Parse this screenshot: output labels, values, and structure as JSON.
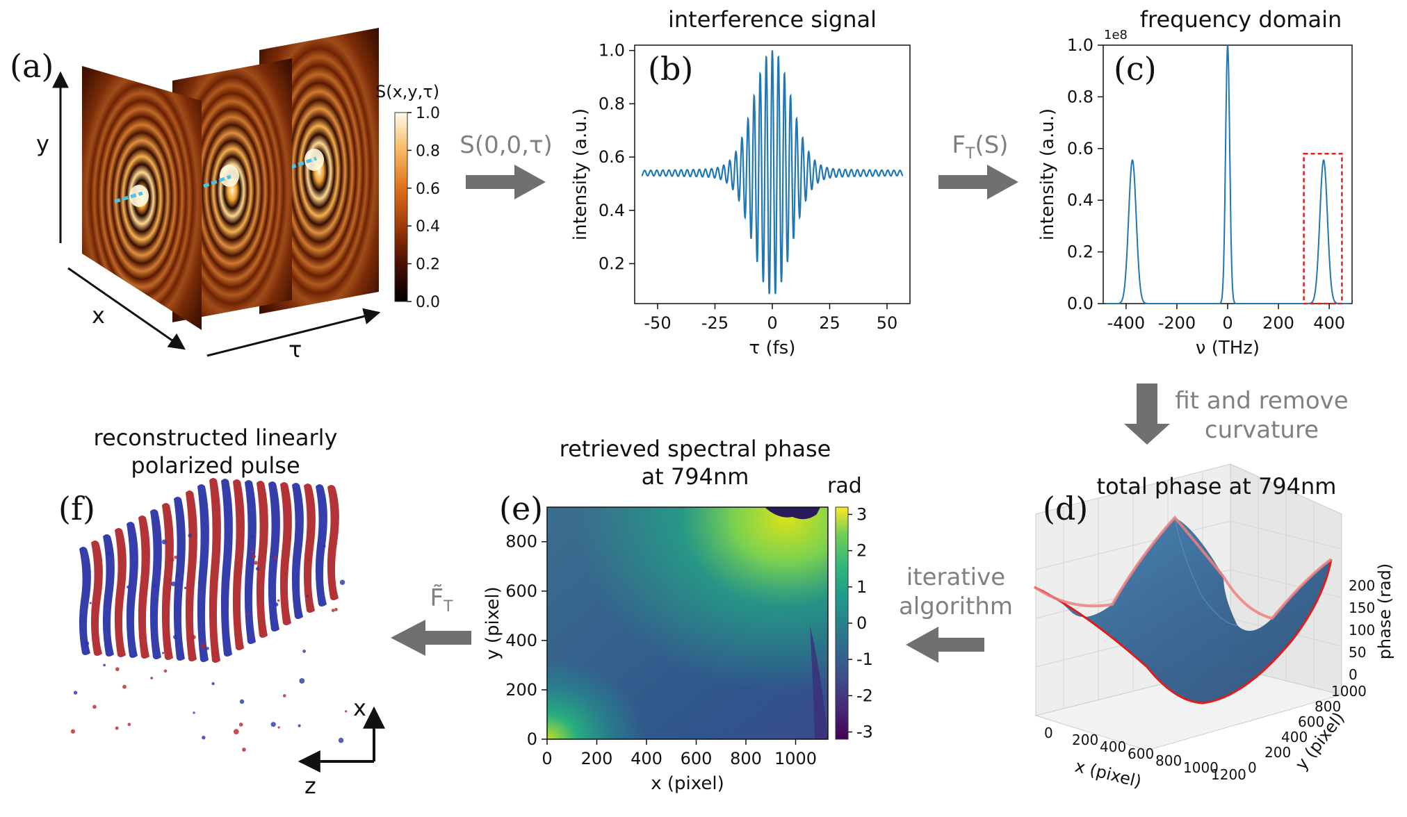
{
  "panels": {
    "a": {
      "label": "(a)",
      "axis_y": "y",
      "axis_x": "x",
      "axis_tau": "τ",
      "colorbar_title": "S(x,y,τ)",
      "colorbar_ticks": [
        "1.0",
        "0.8",
        "0.6",
        "0.4",
        "0.2",
        "0.0"
      ]
    },
    "b": {
      "label": "(b)",
      "title": "interference signal"
    },
    "c": {
      "label": "(c)",
      "title": "frequency domain",
      "offset": "1e8"
    },
    "d": {
      "label": "(d)",
      "title": "total phase at 794nm",
      "xlabel": "x (pixel)",
      "ylabel": "y (pixel)",
      "zlabel": "phase (rad)",
      "xticks": [
        "0",
        "200",
        "400",
        "600",
        "800",
        "1000",
        "1200"
      ],
      "yticks": [
        "0",
        "200",
        "400",
        "600",
        "800",
        "1000"
      ],
      "zticks": [
        "0",
        "50",
        "100",
        "150",
        "200"
      ]
    },
    "e": {
      "label": "(e)",
      "title_line1": "retrieved spectral phase",
      "title_line2": "at 794nm",
      "colorbar_title": "rad"
    },
    "f": {
      "label": "(f)",
      "title_line1": "reconstructed linearly",
      "title_line2": "polarized pulse",
      "axis_x": "x",
      "axis_z": "z"
    }
  },
  "steps": {
    "a_to_b": "S(0,0,τ)",
    "b_to_c_main": "F",
    "b_to_c_sub": "T",
    "b_to_c_tail": "(S)",
    "c_to_d_line1": "fit and remove",
    "c_to_d_line2": "curvature",
    "d_to_e_line1": "iterative",
    "d_to_e_line2": "algorithm",
    "e_to_f_main": "F̃",
    "e_to_f_sub": "T"
  },
  "colors": {
    "line": "#1f77b4",
    "arrow": "#707070",
    "box": "#dd2222",
    "red_pulse": "#b0282c",
    "blue_pulse": "#2b34a6"
  },
  "chart_data": [
    {
      "id": "b",
      "type": "line",
      "title": "interference signal",
      "xlabel": "τ (fs)",
      "ylabel": "intensity (a.u.)",
      "xlim": [
        -60,
        60
      ],
      "ylim": [
        0.05,
        1.02
      ],
      "xticks": [
        -50,
        -25,
        0,
        25,
        50
      ],
      "yticks": [
        0.2,
        0.4,
        0.6,
        0.8,
        1.0
      ],
      "signal": {
        "tau_range": [
          -57,
          57
        ],
        "baseline": 0.54,
        "amplitude": 0.46,
        "envelope_fwhm_fs": 19,
        "carrier_period_fs": 2.65,
        "peak": 1.0,
        "min": 0.08
      }
    },
    {
      "id": "c",
      "type": "line",
      "title": "frequency domain",
      "xlabel": "ν (THz)",
      "ylabel": "intensity (a.u.)",
      "offset_text": "1e8",
      "xlim": [
        -490,
        490
      ],
      "ylim": [
        0,
        1.0
      ],
      "xticks": [
        -400,
        -200,
        0,
        200,
        400
      ],
      "yticks": [
        0.0,
        0.2,
        0.4,
        0.6,
        0.8,
        1.0
      ],
      "peaks": [
        {
          "center": -375,
          "height": 0.555,
          "width": 22
        },
        {
          "center": 0,
          "height": 1.0,
          "width": 12
        },
        {
          "center": 378,
          "height": 0.555,
          "width": 22
        }
      ],
      "highlight_box": {
        "x": [
          300,
          450
        ],
        "y": [
          0,
          0.58
        ]
      }
    },
    {
      "id": "e",
      "type": "heatmap",
      "xlabel": "x (pixel)",
      "ylabel": "y (pixel)",
      "xlim": [
        0,
        1130
      ],
      "ylim": [
        0,
        940
      ],
      "xticks": [
        0,
        200,
        400,
        600,
        800,
        1000
      ],
      "yticks": [
        0,
        200,
        400,
        600,
        800
      ],
      "colorbar": {
        "label": "rad",
        "range": [
          -3.2,
          3.2
        ],
        "ticks": [
          3,
          2,
          1,
          0,
          -1,
          -2,
          -3
        ]
      }
    },
    {
      "id": "a_colorbar",
      "type": "heatmap",
      "label": "S(x,y,τ)",
      "range": [
        0,
        1
      ],
      "ticks": [
        1.0,
        0.8,
        0.6,
        0.4,
        0.2,
        0.0
      ]
    }
  ]
}
